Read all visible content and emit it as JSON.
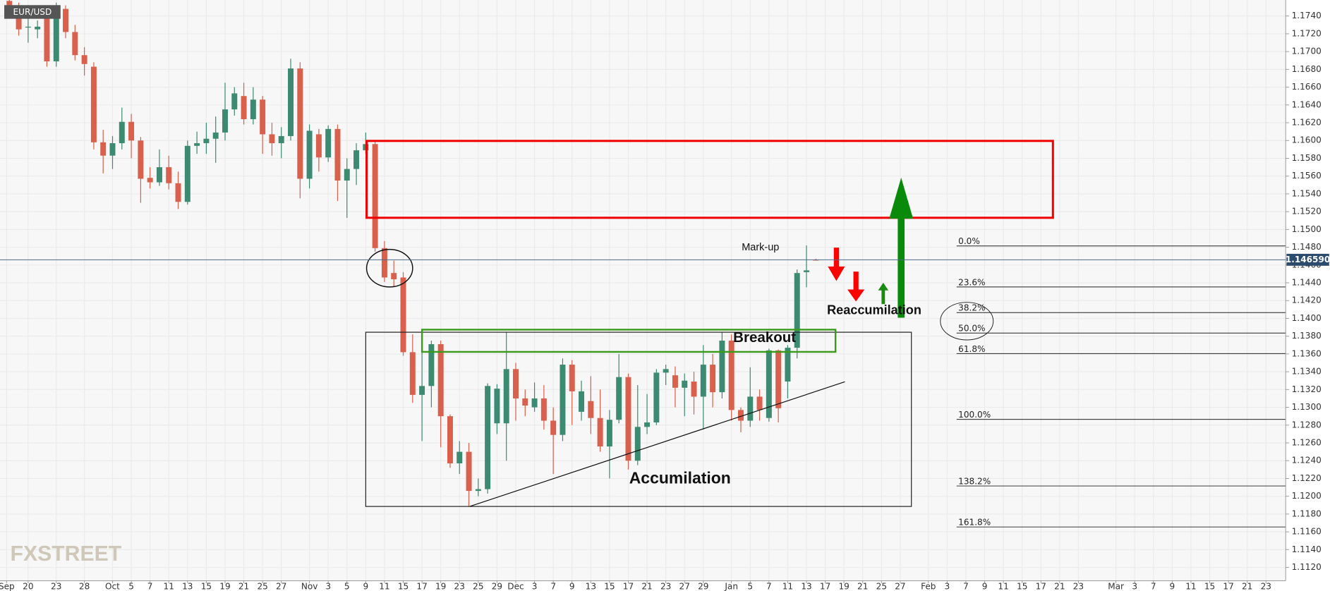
{
  "chart_data": {
    "type": "candlestick",
    "symbol": "EUR/USD",
    "up_color": "#3d8a72",
    "down_color": "#d8604c",
    "grid": true,
    "x": [
      -2,
      -1,
      0,
      1,
      2,
      3,
      4,
      5,
      6,
      7,
      8,
      9,
      10,
      11,
      12,
      13,
      14,
      15,
      16,
      17,
      18,
      19,
      20,
      21,
      22,
      23,
      24,
      25,
      26,
      27,
      28,
      29,
      30,
      31,
      32,
      33,
      34,
      35,
      36,
      37,
      38,
      39,
      40,
      41,
      42,
      43,
      44,
      45,
      46,
      47,
      48,
      49,
      50,
      51,
      52,
      53,
      54,
      55,
      56,
      57,
      58,
      59,
      60,
      61,
      62,
      63,
      64,
      65,
      66,
      67,
      68,
      69,
      70,
      71,
      72,
      73,
      74,
      75,
      76,
      77,
      78,
      79,
      80,
      81,
      82,
      83,
      84
    ],
    "open": [
      1.1757,
      1.1749,
      1.1727,
      1.1725,
      1.1738,
      1.1689,
      1.1748,
      1.1722,
      1.1696,
      1.1683,
      1.1598,
      1.1583,
      1.1597,
      1.1621,
      1.16,
      1.1558,
      1.1553,
      1.157,
      1.1552,
      1.1531,
      1.1594,
      1.1597,
      1.1602,
      1.1609,
      1.1635,
      1.165,
      1.1624,
      1.1646,
      1.1607,
      1.1597,
      1.1605,
      1.1681,
      1.1557,
      1.1607,
      1.1581,
      1.1613,
      1.1555,
      1.1568,
      1.1589,
      1.1596,
      1.1479,
      1.1451,
      1.1446,
      1.1362,
      1.1314,
      1.1324,
      1.1371,
      1.129,
      1.1237,
      1.125,
      1.1206,
      1.1208,
      1.1282,
      1.1282,
      1.1343,
      1.131,
      1.13,
      1.131,
      1.1285,
      1.1269,
      1.1348,
      1.1295,
      1.1307,
      1.1288,
      1.1256,
      1.1286,
      1.1334,
      1.124,
      1.1278,
      1.1283,
      1.1339,
      1.1336,
      1.1322,
      1.1329,
      1.1312,
      1.1348,
      1.1317,
      1.1375,
      1.1297,
      1.1285,
      1.1312,
      1.1288,
      1.1364,
      1.1329,
      1.1367,
      1.1452,
      1.1466
    ],
    "high": [
      1.1758,
      1.1755,
      1.1745,
      1.1735,
      1.175,
      1.1755,
      1.1752,
      1.173,
      1.1705,
      1.1688,
      1.1612,
      1.1605,
      1.1637,
      1.163,
      1.1604,
      1.157,
      1.159,
      1.1583,
      1.1565,
      1.16,
      1.161,
      1.162,
      1.1627,
      1.1665,
      1.166,
      1.1665,
      1.166,
      1.165,
      1.162,
      1.1615,
      1.1692,
      1.1688,
      1.1618,
      1.1613,
      1.1617,
      1.1618,
      1.158,
      1.1597,
      1.1609,
      1.16,
      1.1487,
      1.1465,
      1.1452,
      1.1382,
      1.1382,
      1.1375,
      1.1375,
      1.1292,
      1.1262,
      1.126,
      1.122,
      1.1327,
      1.1326,
      1.1385,
      1.135,
      1.132,
      1.1328,
      1.1325,
      1.13,
      1.1355,
      1.1353,
      1.133,
      1.1335,
      1.132,
      1.1297,
      1.136,
      1.1338,
      1.1325,
      1.1315,
      1.1343,
      1.1348,
      1.1346,
      1.1338,
      1.134,
      1.137,
      1.136,
      1.1385,
      1.1382,
      1.13,
      1.1345,
      1.132,
      1.1366,
      1.1365,
      1.137,
      1.1455,
      1.1482,
      1.1467
    ],
    "low": [
      1.1745,
      1.1718,
      1.171,
      1.1715,
      1.1683,
      1.1683,
      1.1715,
      1.169,
      1.1673,
      1.159,
      1.1563,
      1.1568,
      1.159,
      1.158,
      1.153,
      1.1546,
      1.1549,
      1.1545,
      1.1523,
      1.1528,
      1.1585,
      1.1585,
      1.1575,
      1.16,
      1.1628,
      1.1618,
      1.1618,
      1.1585,
      1.1583,
      1.158,
      1.16,
      1.1535,
      1.1546,
      1.1565,
      1.1576,
      1.1532,
      1.1513,
      1.155,
      1.1585,
      1.1475,
      1.1441,
      1.1436,
      1.1358,
      1.1305,
      1.1262,
      1.13,
      1.1255,
      1.1232,
      1.1225,
      1.1189,
      1.12,
      1.1203,
      1.127,
      1.124,
      1.1285,
      1.129,
      1.1295,
      1.1275,
      1.1225,
      1.1262,
      1.128,
      1.1285,
      1.127,
      1.125,
      1.122,
      1.1282,
      1.123,
      1.1235,
      1.127,
      1.128,
      1.1325,
      1.13,
      1.129,
      1.1292,
      1.1275,
      1.13,
      1.131,
      1.1285,
      1.1272,
      1.1278,
      1.1285,
      1.1284,
      1.1283,
      1.131,
      1.1355,
      1.1435,
      1.1465
    ],
    "close": [
      1.175,
      1.1725,
      1.1728,
      1.1728,
      1.1689,
      1.1748,
      1.1722,
      1.1696,
      1.1686,
      1.1598,
      1.1583,
      1.1597,
      1.1621,
      1.16,
      1.1557,
      1.1553,
      1.157,
      1.1552,
      1.1531,
      1.1594,
      1.1597,
      1.1602,
      1.1609,
      1.1635,
      1.1653,
      1.1624,
      1.1646,
      1.1607,
      1.1597,
      1.1605,
      1.1681,
      1.1557,
      1.1611,
      1.1581,
      1.1613,
      1.1555,
      1.1568,
      1.1589,
      1.1596,
      1.1479,
      1.1446,
      1.1444,
      1.1362,
      1.1314,
      1.1324,
      1.1371,
      1.129,
      1.1237,
      1.125,
      1.1206,
      1.1208,
      1.1324,
      1.1321,
      1.1343,
      1.131,
      1.1302,
      1.131,
      1.1285,
      1.1269,
      1.1348,
      1.1318,
      1.1318,
      1.1288,
      1.1256,
      1.1286,
      1.1334,
      1.124,
      1.1278,
      1.1283,
      1.1339,
      1.1343,
      1.1322,
      1.133,
      1.1312,
      1.1348,
      1.1317,
      1.1375,
      1.1297,
      1.1285,
      1.1312,
      1.1297,
      1.1364,
      1.1299,
      1.1367,
      1.1451,
      1.1454,
      1.14659
    ],
    "xlim": [
      -3,
      134.1
    ],
    "xticks": [
      {
        "value": -2.3,
        "label": "Sep"
      },
      {
        "value": 0,
        "label": "20"
      },
      {
        "value": 3,
        "label": "23"
      },
      {
        "value": 6,
        "label": "28"
      },
      {
        "value": 9,
        "label": "Oct"
      },
      {
        "value": 11,
        "label": "5"
      },
      {
        "value": 13,
        "label": "7"
      },
      {
        "value": 15,
        "label": "11"
      },
      {
        "value": 17,
        "label": "13"
      },
      {
        "value": 19,
        "label": "15"
      },
      {
        "value": 21,
        "label": "19"
      },
      {
        "value": 23,
        "label": "21"
      },
      {
        "value": 25,
        "label": "25"
      },
      {
        "value": 27,
        "label": "27"
      },
      {
        "value": 30,
        "label": "Nov"
      },
      {
        "value": 32,
        "label": "3"
      },
      {
        "value": 34,
        "label": "5"
      },
      {
        "value": 36,
        "label": "9"
      },
      {
        "value": 38,
        "label": "11"
      },
      {
        "value": 40,
        "label": "15"
      },
      {
        "value": 42,
        "label": "17"
      },
      {
        "value": 44,
        "label": "19"
      },
      {
        "value": 46,
        "label": "23"
      },
      {
        "value": 48,
        "label": "25"
      },
      {
        "value": 50,
        "label": "29"
      },
      {
        "value": 52,
        "label": "Dec"
      },
      {
        "value": 54,
        "label": "3"
      },
      {
        "value": 56,
        "label": "7"
      },
      {
        "value": 58,
        "label": "9"
      },
      {
        "value": 60,
        "label": "13"
      },
      {
        "value": 62,
        "label": "15"
      },
      {
        "value": 64,
        "label": "17"
      },
      {
        "value": 66,
        "label": "21"
      },
      {
        "value": 68,
        "label": "23"
      },
      {
        "value": 70,
        "label": "27"
      },
      {
        "value": 72,
        "label": "29"
      },
      {
        "value": 75,
        "label": "Jan"
      },
      {
        "value": 77,
        "label": "5"
      },
      {
        "value": 79,
        "label": "7"
      },
      {
        "value": 81,
        "label": "11"
      },
      {
        "value": 83,
        "label": "13"
      },
      {
        "value": 85,
        "label": "17"
      },
      {
        "value": 87,
        "label": "19"
      },
      {
        "value": 89,
        "label": "21"
      },
      {
        "value": 91,
        "label": "25"
      },
      {
        "value": 93,
        "label": "27"
      },
      {
        "value": 96,
        "label": "Feb"
      },
      {
        "value": 98,
        "label": "3"
      },
      {
        "value": 100,
        "label": "7"
      },
      {
        "value": 102,
        "label": "9"
      },
      {
        "value": 104,
        "label": "11"
      },
      {
        "value": 106,
        "label": "15"
      },
      {
        "value": 108,
        "label": "17"
      },
      {
        "value": 110,
        "label": "21"
      },
      {
        "value": 112,
        "label": "23"
      },
      {
        "value": 116,
        "label": "Mar"
      },
      {
        "value": 118,
        "label": "3"
      },
      {
        "value": 120,
        "label": "7"
      },
      {
        "value": 122,
        "label": "9"
      },
      {
        "value": 124,
        "label": "11"
      },
      {
        "value": 126,
        "label": "15"
      },
      {
        "value": 128,
        "label": "17"
      },
      {
        "value": 130,
        "label": "21"
      },
      {
        "value": 132,
        "label": "23"
      }
    ],
    "ylim": [
      1.1105,
      1.1758
    ],
    "yticks": [
      {
        "value": 1.112,
        "label": "1.1120"
      },
      {
        "value": 1.114,
        "label": "1.1140"
      },
      {
        "value": 1.116,
        "label": "1.1160"
      },
      {
        "value": 1.118,
        "label": "1.1180"
      },
      {
        "value": 1.12,
        "label": "1.1200"
      },
      {
        "value": 1.122,
        "label": "1.1220"
      },
      {
        "value": 1.124,
        "label": "1.1240"
      },
      {
        "value": 1.126,
        "label": "1.1260"
      },
      {
        "value": 1.128,
        "label": "1.1280"
      },
      {
        "value": 1.13,
        "label": "1.1300"
      },
      {
        "value": 1.132,
        "label": "1.1320"
      },
      {
        "value": 1.134,
        "label": "1.1340"
      },
      {
        "value": 1.136,
        "label": "1.1360"
      },
      {
        "value": 1.138,
        "label": "1.1380"
      },
      {
        "value": 1.14,
        "label": "1.1400"
      },
      {
        "value": 1.142,
        "label": "1.1420"
      },
      {
        "value": 1.144,
        "label": "1.1440"
      },
      {
        "value": 1.146,
        "label": "1.1460"
      },
      {
        "value": 1.148,
        "label": "1.1480"
      },
      {
        "value": 1.15,
        "label": "1.1500"
      },
      {
        "value": 1.152,
        "label": "1.1520"
      },
      {
        "value": 1.154,
        "label": "1.1540"
      },
      {
        "value": 1.156,
        "label": "1.1560"
      },
      {
        "value": 1.158,
        "label": "1.1580"
      },
      {
        "value": 1.16,
        "label": "1.1600"
      },
      {
        "value": 1.162,
        "label": "1.1620"
      },
      {
        "value": 1.164,
        "label": "1.1640"
      },
      {
        "value": 1.166,
        "label": "1.1660"
      },
      {
        "value": 1.168,
        "label": "1.1680"
      },
      {
        "value": 1.17,
        "label": "1.1700"
      },
      {
        "value": 1.172,
        "label": "1.1720"
      },
      {
        "value": 1.174,
        "label": "1.1740"
      }
    ],
    "last_price": {
      "value": 1.14659,
      "label": "1.146590"
    },
    "annotations": {
      "mark_up": "Mark-up",
      "reaccumulation": "Reaccumilation",
      "breakout": "Breakout",
      "accumulation": "Accumilation"
    },
    "fib_labels": [
      "0.0%",
      "23.6%",
      "38.2%",
      "50.0%",
      "61.8%",
      "100.0%",
      "138.2%",
      "161.8%"
    ],
    "watermark": "FXSTREET"
  }
}
